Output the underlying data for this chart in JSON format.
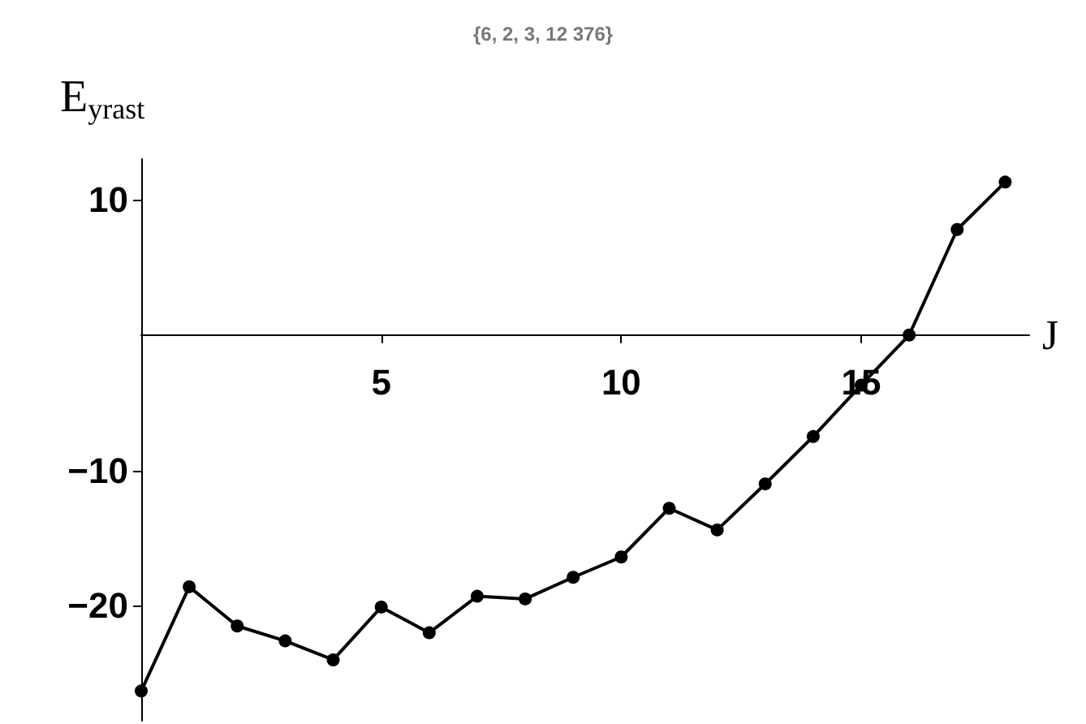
{
  "chart_data": {
    "type": "line",
    "title": "{6, 2, 3, 12 376}",
    "xlabel": "J",
    "ylabel": "E$_{yrast}$",
    "x": [
      0,
      1,
      2,
      3,
      4,
      5,
      6,
      7,
      8,
      9,
      10,
      11,
      12,
      13,
      14,
      15,
      16,
      17,
      18
    ],
    "values": [
      -26.3,
      -18.6,
      -21.5,
      -22.6,
      -24.0,
      -20.1,
      -22.0,
      -19.3,
      -19.5,
      -17.9,
      -16.4,
      -12.8,
      -14.4,
      -11.0,
      -7.5,
      -3.7,
      0,
      7.8,
      11.3
    ],
    "color": "#000000",
    "marker": "circle",
    "line_style": "solid",
    "grid": false,
    "xlim": [
      0,
      18.5
    ],
    "xticks": [
      5,
      10,
      15
    ],
    "ylim": [
      -28.5,
      13
    ],
    "yticks": [
      {
        "value": -20,
        "label": "−20"
      },
      {
        "value": -10,
        "label": "−10"
      },
      10
    ]
  }
}
